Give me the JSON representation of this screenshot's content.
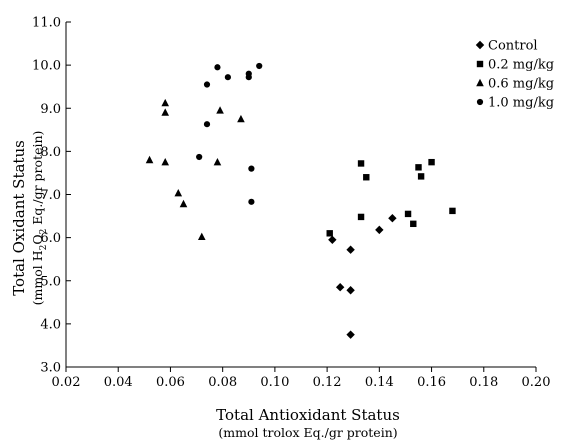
{
  "chart_data": {
    "type": "scatter",
    "xlabel": "Total Antioxidant Status",
    "xlabel_sub": "(mmol trolox Eq./gr protein)",
    "ylabel": "Total Oxidant Status",
    "ylabel_sub_pre": "(mmol H",
    "ylabel_sub_s1": "2",
    "ylabel_sub_mid": "O",
    "ylabel_sub_s2": "2",
    "ylabel_sub_post": " Eq./gr protein)",
    "xlim": [
      0.02,
      0.2
    ],
    "ylim": [
      3.0,
      11.0
    ],
    "xticks": [
      "0.02",
      "0.04",
      "0.06",
      "0.08",
      "0.10",
      "0.12",
      "0.14",
      "0.16",
      "0.18",
      "0.20"
    ],
    "yticks": [
      "3.0",
      "4.0",
      "5.0",
      "6.0",
      "7.0",
      "8.0",
      "9.0",
      "10.0",
      "11.0"
    ],
    "legend_position": "top-right",
    "grid": false,
    "series": [
      {
        "name": "Control",
        "marker": "diamond",
        "points": [
          [
            0.122,
            5.95
          ],
          [
            0.125,
            4.85
          ],
          [
            0.129,
            5.72
          ],
          [
            0.129,
            4.78
          ],
          [
            0.129,
            3.75
          ],
          [
            0.14,
            6.18
          ],
          [
            0.145,
            6.45
          ]
        ]
      },
      {
        "name": "0.2 mg/kg",
        "marker": "square",
        "points": [
          [
            0.121,
            6.1
          ],
          [
            0.133,
            7.72
          ],
          [
            0.133,
            6.48
          ],
          [
            0.135,
            7.4
          ],
          [
            0.151,
            6.55
          ],
          [
            0.153,
            6.32
          ],
          [
            0.155,
            7.63
          ],
          [
            0.156,
            7.42
          ],
          [
            0.16,
            7.75
          ],
          [
            0.168,
            6.62
          ]
        ]
      },
      {
        "name": "0.6 mg/kg",
        "marker": "triangle",
        "points": [
          [
            0.052,
            7.8
          ],
          [
            0.058,
            9.12
          ],
          [
            0.058,
            8.9
          ],
          [
            0.058,
            7.75
          ],
          [
            0.063,
            7.03
          ],
          [
            0.065,
            6.78
          ],
          [
            0.072,
            6.02
          ],
          [
            0.078,
            7.75
          ],
          [
            0.079,
            8.95
          ],
          [
            0.087,
            8.75
          ]
        ]
      },
      {
        "name": "1.0 mg/kg",
        "marker": "circle",
        "points": [
          [
            0.071,
            7.87
          ],
          [
            0.074,
            9.55
          ],
          [
            0.074,
            8.63
          ],
          [
            0.078,
            9.95
          ],
          [
            0.082,
            9.72
          ],
          [
            0.09,
            9.8
          ],
          [
            0.09,
            9.72
          ],
          [
            0.094,
            9.98
          ],
          [
            0.091,
            7.6
          ],
          [
            0.091,
            6.83
          ]
        ]
      }
    ]
  }
}
